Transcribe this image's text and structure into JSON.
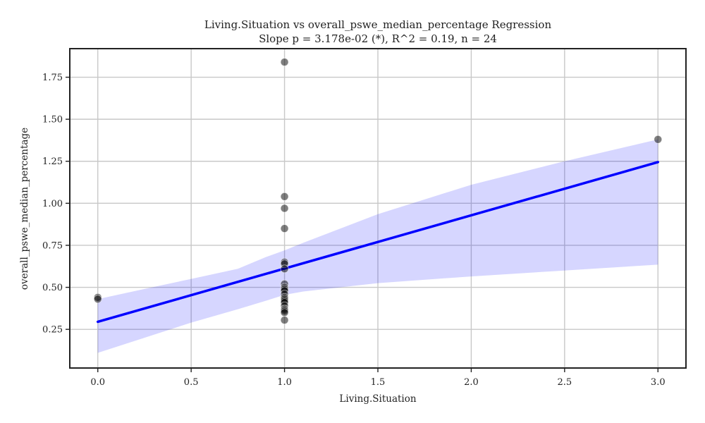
{
  "chart_data": {
    "type": "scatter",
    "title": "Living.Situation vs overall_pswe_median_percentage Regression",
    "subtitle": "Slope p = 3.178e-02 (*), R^2 = 0.19, n = 24",
    "xlabel": "Living.Situation",
    "ylabel": "overall_pswe_median_percentage",
    "xlim": [
      -0.15,
      3.15
    ],
    "ylim": [
      0.02,
      1.92
    ],
    "xticks": [
      0.0,
      0.5,
      1.0,
      1.5,
      2.0,
      2.5,
      3.0
    ],
    "xtick_labels": [
      "0.0",
      "0.5",
      "1.0",
      "1.5",
      "2.0",
      "2.5",
      "3.0"
    ],
    "yticks": [
      0.25,
      0.5,
      0.75,
      1.0,
      1.25,
      1.5,
      1.75
    ],
    "ytick_labels": [
      "0.25",
      "0.50",
      "0.75",
      "1.00",
      "1.25",
      "1.50",
      "1.75"
    ],
    "grid": true,
    "points": {
      "x": [
        0,
        0,
        1,
        1,
        1,
        1,
        1,
        1,
        1,
        1,
        1,
        1,
        1,
        1,
        1,
        1,
        1,
        1,
        1,
        1,
        1,
        1,
        1,
        3
      ],
      "y": [
        0.44,
        0.43,
        1.84,
        1.04,
        0.97,
        0.85,
        0.65,
        0.64,
        0.61,
        0.52,
        0.5,
        0.49,
        0.48,
        0.46,
        0.44,
        0.43,
        0.42,
        0.41,
        0.39,
        0.37,
        0.36,
        0.35,
        0.305,
        1.38
      ],
      "color": "#000000",
      "opacity": 0.5
    },
    "regression": {
      "x": [
        0,
        3
      ],
      "y": [
        0.295,
        1.245
      ],
      "color": "#0000ff"
    },
    "confidence_band": {
      "x": [
        0,
        0.25,
        0.5,
        0.75,
        0.9,
        1.0,
        1.1,
        1.5,
        2.0,
        2.5,
        3.0
      ],
      "lower": [
        0.11,
        0.2,
        0.29,
        0.37,
        0.42,
        0.455,
        0.475,
        0.525,
        0.565,
        0.6,
        0.635
      ],
      "upper": [
        0.43,
        0.49,
        0.55,
        0.61,
        0.68,
        0.72,
        0.765,
        0.935,
        1.11,
        1.25,
        1.38
      ],
      "color": "#0000ff",
      "opacity": 0.16
    }
  }
}
